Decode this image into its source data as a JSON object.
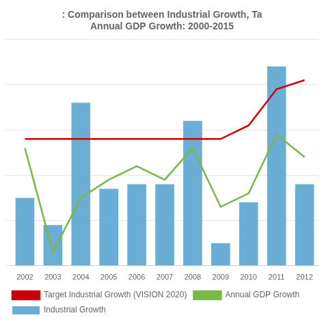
{
  "chart_data": {
    "type": "bar",
    "title": ": Comparison between Industrial Growth, Ta\nAnnual GDP Growth: 2000-2015",
    "categories": [
      "2002",
      "2003",
      "2004",
      "2005",
      "2006",
      "2007",
      "2008",
      "2009",
      "2010",
      "2011",
      "2012"
    ],
    "series": [
      {
        "name": "Industrial Growth",
        "type": "bar",
        "color": "#6aaed6",
        "values": [
          7.5,
          4.5,
          18.0,
          8.5,
          9.0,
          9.0,
          16.0,
          2.5,
          7.0,
          22.0,
          9.0
        ]
      },
      {
        "name": "Target Industrial Growth (VISION 2020)",
        "type": "line",
        "color": "#cc0000",
        "marker": "none",
        "values": [
          14.0,
          14.0,
          14.0,
          14.0,
          14.0,
          14.0,
          14.0,
          14.0,
          15.5,
          19.5,
          20.5
        ]
      },
      {
        "name": "Annual GDP Growth",
        "type": "line",
        "color": "#7ab648",
        "marker": "none",
        "values": [
          13.0,
          1.5,
          7.5,
          9.5,
          11.0,
          9.5,
          13.0,
          6.5,
          8.0,
          14.5,
          12.0
        ]
      }
    ],
    "ylim": [
      0,
      25
    ],
    "yticks": [
      0,
      5,
      10,
      15,
      20,
      25
    ],
    "grid": true,
    "tick_labels": "x",
    "legend": "lower left"
  }
}
